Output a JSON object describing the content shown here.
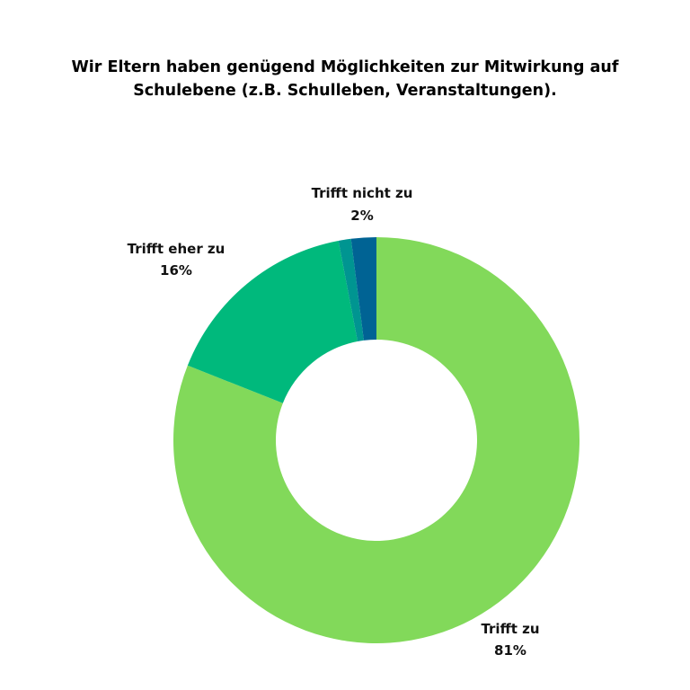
{
  "chart_data": {
    "type": "pie",
    "title": "Wir Eltern haben genügend Möglichkeiten zur Mitwirkung auf Schulebene (z.B. Schulleben, Veranstaltungen).",
    "title_lines": [
      "Wir Eltern haben genügend Möglichkeiten zur Mitwirkung auf",
      "Schulebene (z.B. Schulleben, Veranstaltungen)."
    ],
    "donut": true,
    "slices": [
      {
        "label": "Trifft zu",
        "value": 81,
        "value_label": "81%",
        "color": "#82d95a"
      },
      {
        "label": "Trifft eher zu",
        "value": 16,
        "value_label": "16%",
        "color": "#00b97c"
      },
      {
        "label": "",
        "value": 1,
        "value_label": "",
        "color": "#009591"
      },
      {
        "label": "Trifft nicht zu",
        "value": 2,
        "value_label": "2%",
        "color": "#006394"
      }
    ]
  }
}
